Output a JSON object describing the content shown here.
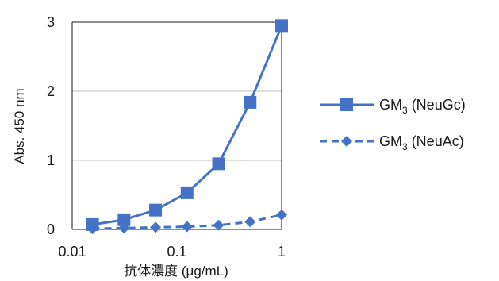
{
  "chart_data": {
    "type": "line",
    "xscale": "log",
    "xlim": [
      0.01,
      1
    ],
    "ylim": [
      0,
      3
    ],
    "xticks": [
      "0.01",
      "0.1",
      "1"
    ],
    "yticks": [
      "0",
      "1",
      "2",
      "3"
    ],
    "xlabel": "抗体濃度 (μg/mL)",
    "ylabel": "Abs. 450 nm",
    "grid": "horizontal",
    "legend_position": "right",
    "series": [
      {
        "name": "GM3 (NeuGc)",
        "legend_main": "GM",
        "legend_sub": "3",
        "legend_tail": " (NeuGc)",
        "marker": "square",
        "line": "solid",
        "color": "#4472c4",
        "x": [
          0.015625,
          0.03125,
          0.0625,
          0.125,
          0.25,
          0.5,
          1
        ],
        "y": [
          0.07,
          0.14,
          0.28,
          0.53,
          0.95,
          1.84,
          2.95
        ]
      },
      {
        "name": "GM3 (NeuAc)",
        "legend_main": "GM",
        "legend_sub": "3",
        "legend_tail": " (NeuAc)",
        "marker": "diamond",
        "line": "dashed",
        "color": "#4472c4",
        "x": [
          0.015625,
          0.03125,
          0.0625,
          0.125,
          0.25,
          0.5,
          1
        ],
        "y": [
          0.01,
          0.02,
          0.03,
          0.04,
          0.06,
          0.11,
          0.21
        ]
      }
    ]
  }
}
